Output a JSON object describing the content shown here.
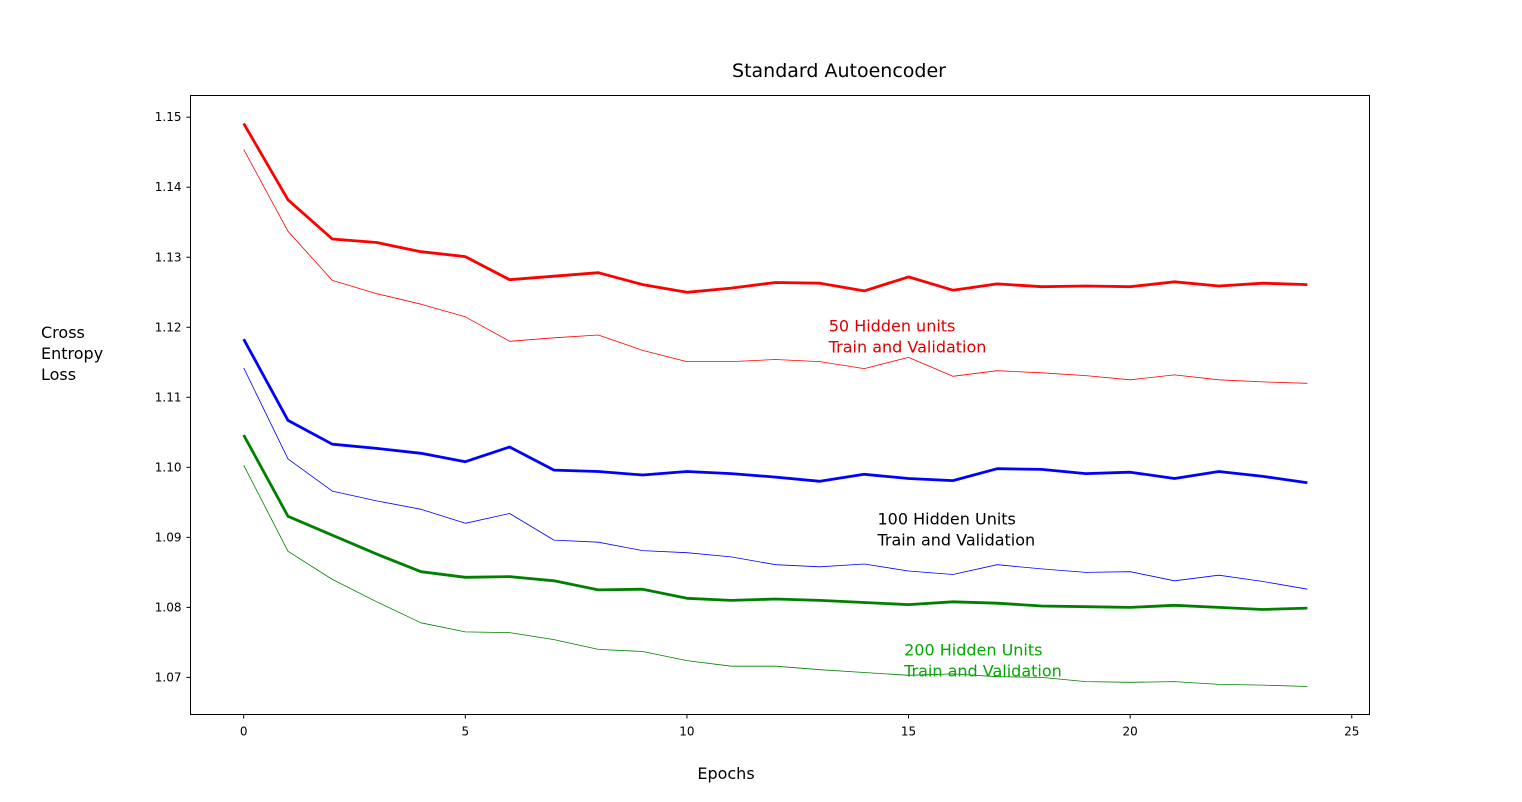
{
  "chart_data": {
    "type": "line",
    "title": "Standard Autoencoder",
    "xlabel": "Epochs",
    "ylabel_lines": [
      "Cross",
      "Entropy",
      "Loss"
    ],
    "xlim": [
      -1.2,
      25.4
    ],
    "ylim": [
      1.0647,
      1.1531
    ],
    "x_ticks": [
      0,
      5,
      10,
      15,
      20,
      25
    ],
    "y_ticks": [
      1.07,
      1.08,
      1.09,
      1.1,
      1.11,
      1.12,
      1.13,
      1.14,
      1.15
    ],
    "grid": false,
    "x": [
      0,
      1,
      2,
      3,
      4,
      5,
      6,
      7,
      8,
      9,
      10,
      11,
      12,
      13,
      14,
      15,
      16,
      17,
      18,
      19,
      20,
      21,
      22,
      23,
      24
    ],
    "series": [
      {
        "color": "#ff0000",
        "width": "thick",
        "values": [
          1.1491,
          1.1382,
          1.1326,
          1.1321,
          1.1308,
          1.1301,
          1.1268,
          1.1273,
          1.1278,
          1.1261,
          1.125,
          1.1256,
          1.1264,
          1.1263,
          1.1252,
          1.1272,
          1.1253,
          1.1262,
          1.1258,
          1.1259,
          1.1258,
          1.1265,
          1.1259,
          1.1263,
          1.1261
        ]
      },
      {
        "color": "#ff0000",
        "width": "thin",
        "values": [
          1.1454,
          1.1337,
          1.1267,
          1.1248,
          1.1233,
          1.1215,
          1.118,
          1.1185,
          1.1189,
          1.1167,
          1.1151,
          1.1151,
          1.1154,
          1.1151,
          1.1141,
          1.1157,
          1.113,
          1.1138,
          1.1135,
          1.1131,
          1.1125,
          1.1132,
          1.1125,
          1.1122,
          1.112
        ]
      },
      {
        "color": "#0000ff",
        "width": "thick",
        "values": [
          1.1183,
          1.1067,
          1.1033,
          1.1027,
          1.102,
          1.1008,
          1.1029,
          1.0996,
          1.0994,
          1.0989,
          1.0994,
          1.0991,
          1.0986,
          1.098,
          1.099,
          1.0984,
          1.0981,
          1.0998,
          1.0997,
          1.0991,
          1.0993,
          1.0984,
          1.0994,
          1.0987,
          1.0978
        ]
      },
      {
        "color": "#0000ff",
        "width": "thin",
        "values": [
          1.1142,
          1.1012,
          1.0966,
          1.0952,
          1.094,
          1.092,
          1.0934,
          1.0896,
          1.0893,
          1.0881,
          1.0878,
          1.0872,
          1.0861,
          1.0858,
          1.0862,
          1.0852,
          1.0847,
          1.0861,
          1.0855,
          1.085,
          1.0851,
          1.0838,
          1.0846,
          1.0837,
          1.0826
        ]
      },
      {
        "color": "#008000",
        "width": "thick",
        "values": [
          1.1046,
          1.093,
          1.0903,
          1.0876,
          1.0851,
          1.0843,
          1.0844,
          1.0838,
          1.0825,
          1.0826,
          1.0813,
          1.081,
          1.0812,
          1.081,
          1.0807,
          1.0804,
          1.0808,
          1.0806,
          1.0802,
          1.0801,
          1.08,
          1.0803,
          1.08,
          1.0797,
          1.0799
        ]
      },
      {
        "color": "#008000",
        "width": "thin",
        "values": [
          1.1003,
          1.088,
          1.084,
          1.0808,
          1.0778,
          1.0765,
          1.0764,
          1.0754,
          1.074,
          1.0737,
          1.0724,
          1.0716,
          1.0716,
          1.0711,
          1.0707,
          1.0703,
          1.0705,
          1.0701,
          1.07,
          1.0694,
          1.0693,
          1.0694,
          1.069,
          1.0689,
          1.0687
        ]
      }
    ],
    "annotations": [
      {
        "lines": [
          "50 Hidden units",
          "Train and Validation"
        ],
        "color": "#dd0000",
        "x": 13.2,
        "y": 1.1194
      },
      {
        "lines": [
          "100 Hidden Units",
          "Train and Validation"
        ],
        "color": "#000000",
        "x": 14.3,
        "y": 1.0918
      },
      {
        "lines": [
          "200 Hidden Units",
          "Train and Validation"
        ],
        "color": "#00aa00",
        "x": 14.9,
        "y": 1.0731
      }
    ]
  }
}
